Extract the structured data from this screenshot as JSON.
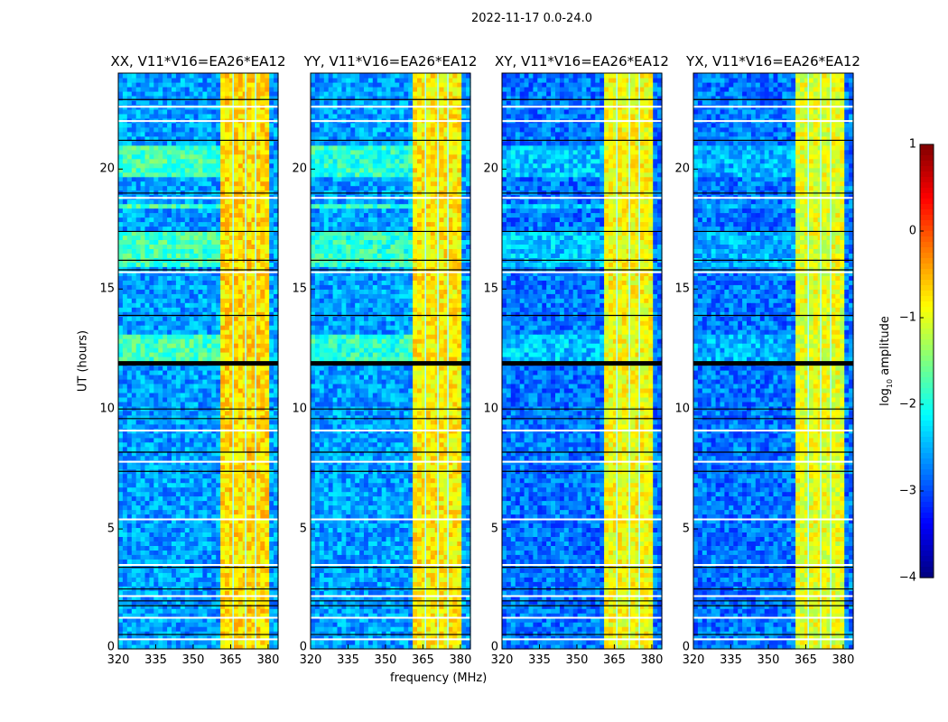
{
  "chart_data": {
    "type": "heatmap",
    "title": "2022-11-17 0.0-24.0",
    "xlabel": "frequency (MHz)",
    "ylabel": "UT (hours)",
    "xlim": [
      320,
      384
    ],
    "ylim": [
      0,
      24
    ],
    "x_ticks": [
      "320",
      "335",
      "350",
      "365",
      "380"
    ],
    "x_tick_values": [
      320,
      335,
      350,
      365,
      380
    ],
    "y_ticks": [
      "0",
      "5",
      "10",
      "15",
      "20"
    ],
    "y_tick_values": [
      0,
      5,
      10,
      15,
      20
    ],
    "colorbar": {
      "label": "log10 amplitude",
      "label_main": "log",
      "label_sub": "10",
      "label_rest": " amplitude",
      "range": [
        -4,
        1
      ],
      "ticks": [
        "1",
        "0",
        "−1",
        "−2",
        "−3",
        "−4"
      ],
      "tick_values": [
        1,
        0,
        -1,
        -2,
        -3,
        -4
      ],
      "colormap": "jet"
    },
    "panels": [
      {
        "title": "XX, V11*V16=EA26*EA12",
        "low_level": -2.6,
        "band_level": -0.7,
        "elevated_level": -1.8
      },
      {
        "title": "YY, V11*V16=EA26*EA12",
        "low_level": -2.6,
        "band_level": -0.8,
        "elevated_level": -1.9
      },
      {
        "title": "XY, V11*V16=EA26*EA12",
        "low_level": -2.8,
        "band_level": -0.9,
        "elevated_level": -2.4
      },
      {
        "title": "YX, V11*V16=EA26*EA12",
        "low_level": -2.8,
        "band_level": -1.0,
        "elevated_level": -2.5
      }
    ],
    "bright_band_mhz": [
      360.5,
      380
    ],
    "band_gap_lines_mhz": [
      366,
      371,
      375
    ],
    "elevated_time_ranges_hours": [
      [
        12.0,
        13.1
      ],
      [
        16.0,
        17.5
      ],
      [
        18.3,
        18.6
      ],
      [
        19.7,
        21.0
      ]
    ],
    "flagged_white_hours": [
      0.4,
      1.3,
      2.2,
      3.5,
      5.4,
      7.8,
      9.1,
      15.7,
      18.8,
      22.6,
      22.0
    ],
    "gap_black_hours": [
      0.6,
      1.8,
      2.0,
      2.5,
      3.4,
      7.4,
      8.2,
      9.6,
      10.0,
      11.9,
      13.9,
      15.8,
      16.2,
      17.4,
      19.0,
      21.2,
      22.9
    ],
    "thick_gap_hours": [
      11.9
    ]
  }
}
